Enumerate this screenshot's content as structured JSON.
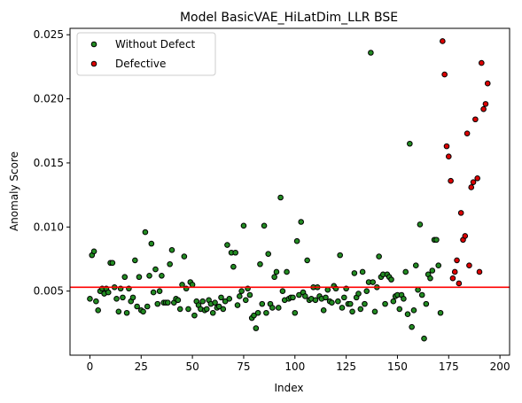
{
  "chart_data": {
    "type": "scatter",
    "title": "Model BasicVAE_HiLatDim_LLR BSE",
    "xlabel": "Index",
    "ylabel": "Anomaly Score",
    "xlim": [
      -9.7,
      204.7
    ],
    "ylim": [
      0.0,
      0.0255
    ],
    "xticks": [
      0,
      25,
      50,
      75,
      100,
      125,
      150,
      175,
      200
    ],
    "xtick_labels": [
      "0",
      "25",
      "50",
      "75",
      "100",
      "125",
      "150",
      "175",
      "200"
    ],
    "yticks": [
      0.005,
      0.01,
      0.015,
      0.02,
      0.025
    ],
    "ytick_labels": [
      "0.005",
      "0.010",
      "0.015",
      "0.020",
      "0.025"
    ],
    "grid": false,
    "legend_position": "top-left",
    "threshold": {
      "y": 0.0053,
      "color": "#ff0000"
    },
    "series": [
      {
        "name": "Without Defect",
        "color": "#228b22",
        "x": [
          0,
          1,
          2,
          3,
          4,
          5,
          6,
          7,
          8,
          9,
          10,
          11,
          12,
          13,
          14,
          15,
          16,
          17,
          18,
          19,
          20,
          21,
          22,
          23,
          24,
          25,
          26,
          27,
          28,
          29,
          30,
          31,
          32,
          33,
          34,
          35,
          36,
          37,
          38,
          39,
          40,
          41,
          42,
          43,
          44,
          45,
          46,
          47,
          48,
          49,
          50,
          51,
          52,
          53,
          54,
          55,
          56,
          57,
          58,
          59,
          60,
          61,
          62,
          63,
          64,
          65,
          66,
          67,
          68,
          69,
          70,
          71,
          72,
          73,
          74,
          75,
          76,
          77,
          78,
          79,
          80,
          81,
          82,
          83,
          84,
          85,
          86,
          87,
          88,
          89,
          90,
          91,
          92,
          93,
          94,
          95,
          96,
          97,
          98,
          99,
          100,
          101,
          102,
          103,
          104,
          105,
          106,
          107,
          108,
          109,
          110,
          111,
          112,
          113,
          114,
          115,
          116,
          117,
          118,
          119,
          120,
          121,
          122,
          123,
          124,
          125,
          126,
          127,
          128,
          129,
          130,
          131,
          132,
          133,
          134,
          135,
          136,
          137,
          138,
          139,
          140,
          141,
          142,
          143,
          144,
          145,
          146,
          147,
          148,
          149,
          150,
          151,
          152,
          153,
          154,
          155,
          156,
          157,
          158,
          159,
          160,
          161,
          162,
          163,
          164,
          165,
          166,
          167,
          168,
          169,
          170,
          171
        ],
        "y": [
          0.0044,
          0.0078,
          0.0081,
          0.0042,
          0.0035,
          0.005,
          0.0052,
          0.0048,
          0.0052,
          0.0049,
          0.0072,
          0.0072,
          0.0053,
          0.0044,
          0.0034,
          0.0052,
          0.0045,
          0.0061,
          0.0033,
          0.0052,
          0.0042,
          0.0045,
          0.0074,
          0.0038,
          0.0061,
          0.0035,
          0.0034,
          0.0096,
          0.0038,
          0.0062,
          0.0087,
          0.0049,
          0.0067,
          0.004,
          0.005,
          0.0062,
          0.0041,
          0.0041,
          0.0041,
          0.0071,
          0.0082,
          0.0041,
          0.0044,
          0.0043,
          0.0036,
          0.0055,
          0.0077,
          0.0052,
          0.0036,
          0.0057,
          0.0055,
          0.0031,
          0.0042,
          0.0039,
          0.0036,
          0.0042,
          0.0035,
          0.0036,
          0.0043,
          0.004,
          0.0033,
          0.0041,
          0.0037,
          0.0038,
          0.0045,
          0.0036,
          0.0042,
          0.0086,
          0.0044,
          0.008,
          0.0069,
          0.008,
          0.0039,
          0.0046,
          0.005,
          0.0101,
          0.0043,
          0.0052,
          0.0047,
          0.0029,
          0.0031,
          0.0021,
          0.0033,
          0.0071,
          0.004,
          0.0101,
          0.0033,
          0.0079,
          0.004,
          0.0037,
          0.0061,
          0.0065,
          0.0037,
          0.0123,
          0.005,
          0.0043,
          0.0065,
          0.0044,
          0.0045,
          0.0045,
          0.0033,
          0.0089,
          0.0047,
          0.0104,
          0.0049,
          0.0046,
          0.0074,
          0.0043,
          0.0044,
          0.0053,
          0.0043,
          0.0053,
          0.0046,
          0.0044,
          0.0035,
          0.0045,
          0.0051,
          0.0042,
          0.0041,
          0.0054,
          0.0052,
          0.0042,
          0.0078,
          0.0037,
          0.0045,
          0.0052,
          0.004,
          0.004,
          0.0034,
          0.0064,
          0.0045,
          0.0048,
          0.0036,
          0.0065,
          0.004,
          0.005,
          0.0057,
          0.0236,
          0.0057,
          0.0034,
          0.0053,
          0.0077,
          0.0061,
          0.0063,
          0.004,
          0.0063,
          0.0061,
          0.0059,
          0.0042,
          0.0046,
          0.0047,
          0.0036,
          0.0047,
          0.0044,
          0.0065,
          0.0032,
          0.0165,
          0.0022,
          0.0035,
          0.007,
          0.0051,
          0.0102,
          0.0047,
          0.0013,
          0.004,
          0.0063,
          0.006,
          0.0066,
          0.009,
          0.009,
          0.007,
          0.0033
        ]
      },
      {
        "name": "Defective",
        "color": "#dd0000",
        "x": [
          172,
          173,
          174,
          175,
          176,
          177,
          178,
          179,
          180,
          181,
          182,
          183,
          184,
          185,
          186,
          187,
          188,
          189,
          190,
          191,
          192,
          193,
          194
        ],
        "y": [
          0.0245,
          0.0219,
          0.0163,
          0.0155,
          0.0136,
          0.006,
          0.0065,
          0.0074,
          0.0056,
          0.0111,
          0.009,
          0.0093,
          0.0173,
          0.007,
          0.0131,
          0.0135,
          0.0184,
          0.0138,
          0.0065,
          0.0228,
          0.0192,
          0.0196,
          0.0212
        ]
      }
    ]
  }
}
